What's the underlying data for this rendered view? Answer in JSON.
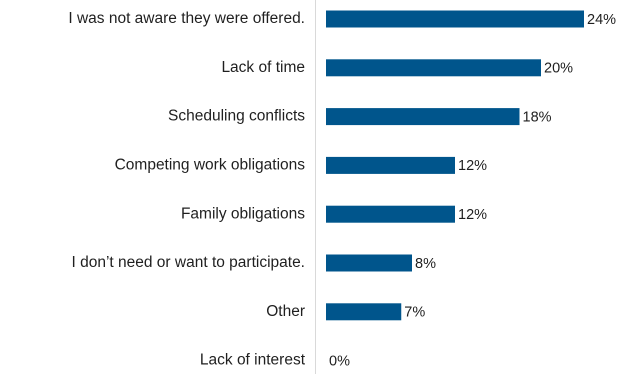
{
  "chart_data": {
    "type": "bar",
    "orientation": "horizontal",
    "categories": [
      "I was not aware they were offered.",
      "Lack of time",
      "Scheduling conflicts",
      "Competing work obligations",
      "Family obligations",
      "I don’t need or want to participate.",
      "Other",
      "Lack of interest"
    ],
    "values": [
      24,
      20,
      18,
      12,
      12,
      8,
      7,
      0
    ],
    "value_labels": [
      "24%",
      "20%",
      "18%",
      "12%",
      "12%",
      "8%",
      "7%",
      "0%"
    ],
    "unit": "%",
    "xlim": [
      0,
      24
    ],
    "bar_color": "#00558c",
    "title": "",
    "xlabel": "",
    "ylabel": "",
    "grid": false,
    "legend": "none"
  }
}
